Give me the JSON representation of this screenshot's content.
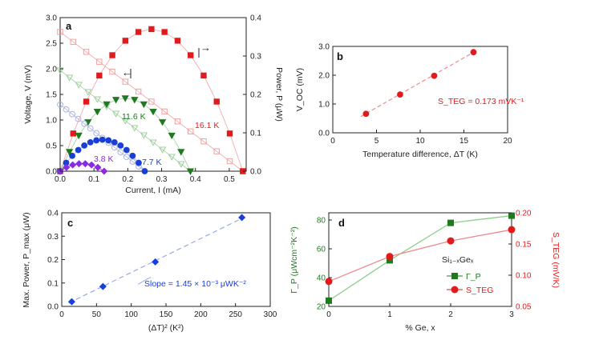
{
  "colors": {
    "red": "#e31a1c",
    "red_light": "#f2a0a0",
    "green": "#1f7a1f",
    "green_light": "#9ccf9c",
    "blue": "#1a3fd6",
    "blue_light": "#a8b2ea",
    "purple": "#8a2be2",
    "lblue": "#9aa8e8",
    "lgreen": "#8bcf8b",
    "lred": "#f08a8a",
    "axis": "#222222"
  },
  "chart_data": [
    {
      "panel": "a",
      "type": "scatter",
      "xlabel": "Current, I (mA)",
      "ylabel": "Voltage, V (mV)",
      "y2label": "Power, P (μW)",
      "xlim": [
        0,
        0.55
      ],
      "ylim": [
        0,
        3.0
      ],
      "y2lim": [
        0,
        0.4
      ],
      "xticks": [
        "0.0",
        "0.1",
        "0.2",
        "0.3",
        "0.4",
        "0.5"
      ],
      "yticks": [
        "0.0",
        "0.5",
        "1.0",
        "1.5",
        "2.0",
        "2.5",
        "3.0"
      ],
      "y2ticks": [
        "0.0",
        "0.1",
        "0.2",
        "0.3",
        "0.4"
      ],
      "arrow_left_label": "←",
      "arrow_right_label": "→",
      "series": [
        {
          "name": "16.1 K",
          "color": "red",
          "x_max": 0.54,
          "v0": 2.72,
          "p_max": 0.37
        },
        {
          "name": "11.6 K",
          "color": "green",
          "x_max": 0.385,
          "v0": 1.97,
          "p_max": 0.19
        },
        {
          "name": "7.7 K",
          "color": "blue",
          "x_max": 0.25,
          "v0": 1.3,
          "p_max": 0.082
        },
        {
          "name": "3.8 K",
          "color": "purple",
          "x_max": 0.13,
          "v0": 0.62,
          "p_max": 0.02
        }
      ]
    },
    {
      "panel": "b",
      "type": "scatter",
      "xlabel": "Temperature difference, ΔT (K)",
      "ylabel": "V_OC (mV)",
      "xlim": [
        0,
        20
      ],
      "ylim": [
        0,
        3.0
      ],
      "xticks": [
        "0",
        "5",
        "10",
        "15",
        "20"
      ],
      "yticks": [
        "0.0",
        "1.0",
        "2.0",
        "3.0"
      ],
      "x": [
        3.8,
        7.7,
        11.6,
        16.1
      ],
      "y": [
        0.66,
        1.33,
        1.98,
        2.8
      ],
      "annotation": "S_TEG = 0.173 mVK⁻¹"
    },
    {
      "panel": "c",
      "type": "scatter",
      "xlabel": "(ΔT)² (K²)",
      "ylabel": "Max. Power, P_max (μW)",
      "xlim": [
        0,
        300
      ],
      "ylim": [
        0,
        0.4
      ],
      "xticks": [
        "0",
        "50",
        "100",
        "150",
        "200",
        "250",
        "300"
      ],
      "yticks": [
        "0.0",
        "0.1",
        "0.2",
        "0.3",
        "0.4"
      ],
      "x": [
        14.4,
        59.3,
        134.6,
        259.2
      ],
      "y": [
        0.02,
        0.085,
        0.19,
        0.38
      ],
      "annotation": "Slope = 1.45 × 10⁻³ μWK⁻²"
    },
    {
      "panel": "d",
      "type": "line",
      "xlabel": "% Ge, x",
      "ylabel": "Γ_P (μWcm⁻²K⁻²)",
      "y2label": "S_TEG (mV/K)",
      "xlim": [
        0,
        3
      ],
      "ylim": [
        20,
        85
      ],
      "y2lim": [
        0.05,
        0.2
      ],
      "xticks": [
        "0",
        "1",
        "2",
        "3"
      ],
      "yticks": [
        "20",
        "40",
        "60",
        "80"
      ],
      "y2ticks": [
        "0.05",
        "0.10",
        "0.15",
        "0.20"
      ],
      "x": [
        0,
        1,
        2,
        3
      ],
      "series": [
        {
          "name": "Γ_P",
          "axis": "left",
          "values": [
            24,
            52,
            78,
            83
          ]
        },
        {
          "name": "S_TEG",
          "axis": "right",
          "values": [
            0.09,
            0.13,
            0.155,
            0.173
          ]
        }
      ],
      "material_label": "Si₁₋ₓGeₓ"
    }
  ]
}
